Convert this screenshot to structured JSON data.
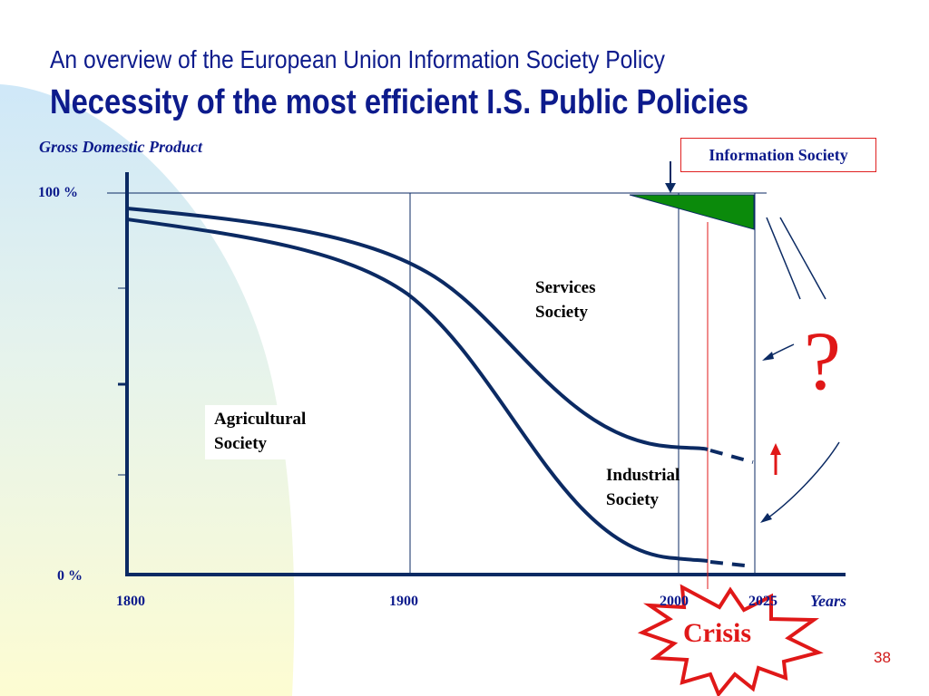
{
  "header": {
    "subtitle": "An overview of the European Union Information Society Policy",
    "title": "Necessity of the most efficient I.S. Public Policies"
  },
  "chart": {
    "y_label": "Gross Domestic Product",
    "y_ticks": [
      "100 %",
      "0 %"
    ],
    "x_ticks": [
      "1800",
      "1900",
      "2000",
      "2025"
    ],
    "x_label": "Years",
    "regions": {
      "agricultural": [
        "Agricultural",
        "Society"
      ],
      "industrial": [
        "Industrial",
        "Society"
      ],
      "services": [
        "Services",
        "Society"
      ]
    },
    "information_society_label": "Information Society",
    "question_mark": "?",
    "crisis_label": "Crisis"
  },
  "colors": {
    "title": "#0d1b8c",
    "curves": "#0b2a63",
    "info_society_fill": "#0b8a0b",
    "crisis_red": "#e01818",
    "background_blue": "#cfe8f8",
    "background_yellow": "#fdfcd2"
  },
  "page_number": "38"
}
